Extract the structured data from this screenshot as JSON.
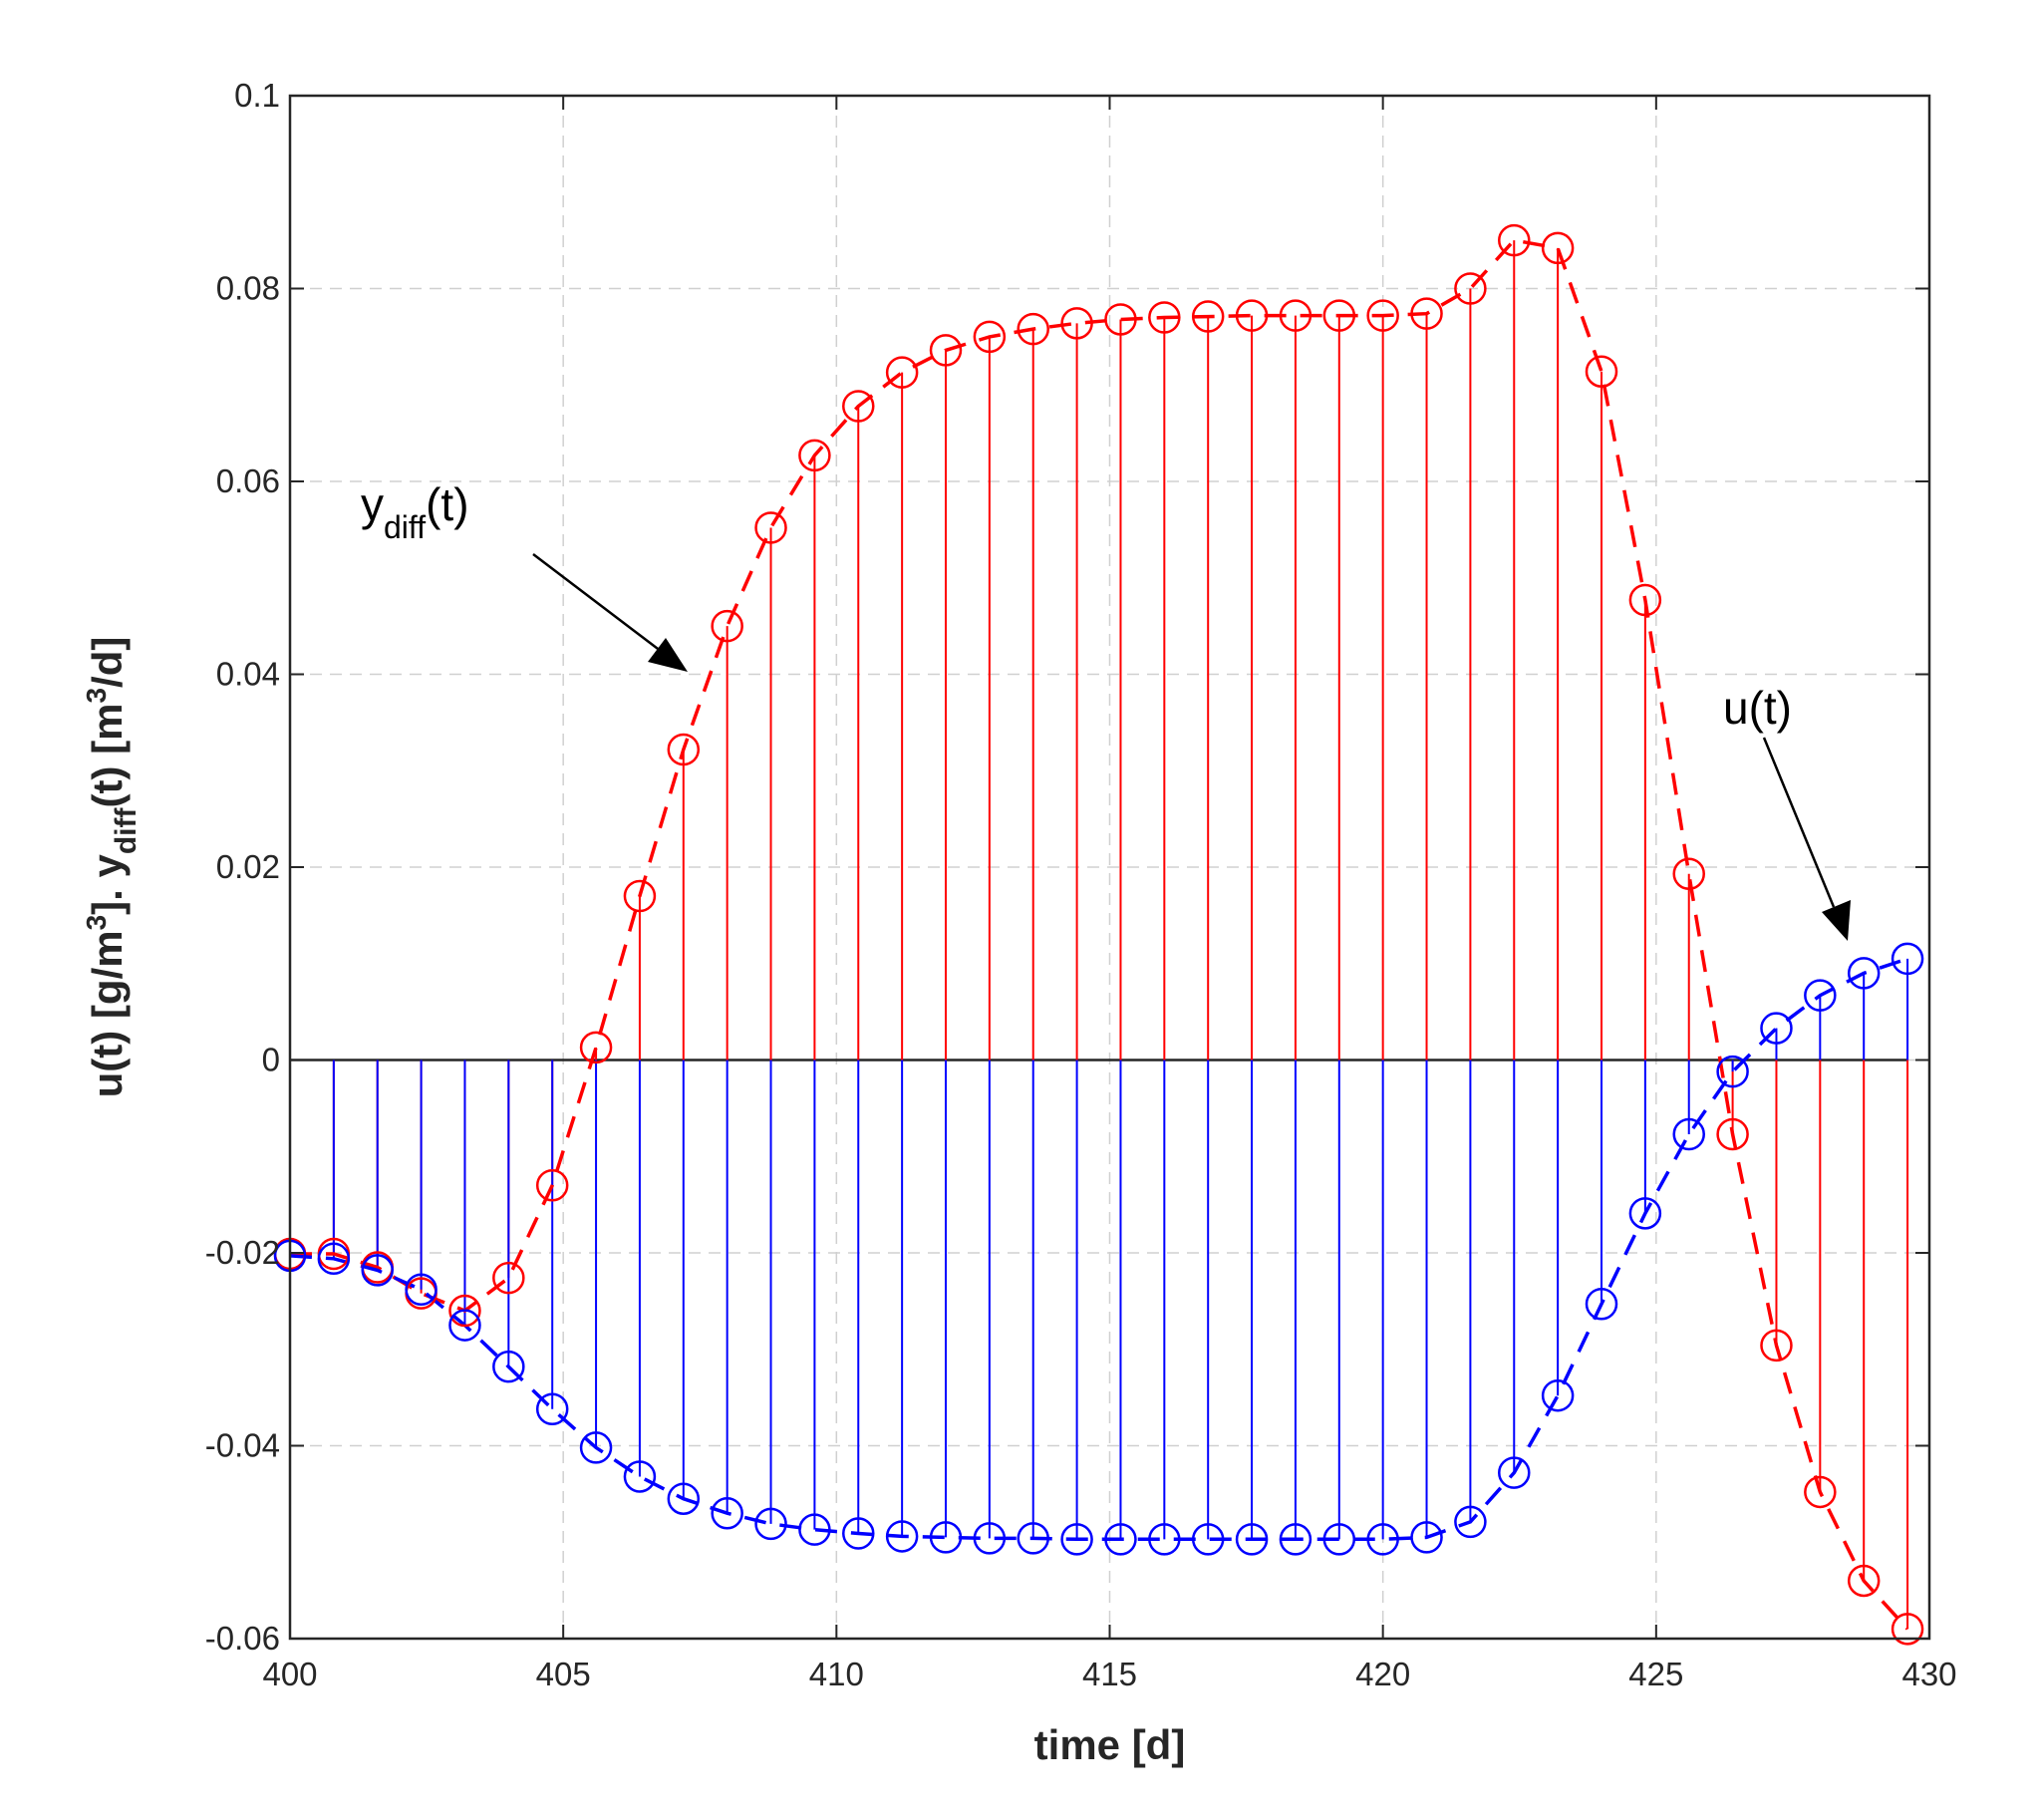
{
  "chart_data": {
    "type": "stem",
    "title": "",
    "xlabel": "time [d]",
    "ylabel": {
      "part1": "u(t)  [g/m",
      "sup1": "3",
      "part2": "]. y",
      "sub1": "diff",
      "part3": "(t)  [m",
      "sup2": "3",
      "part4": "/d]"
    },
    "xlim": [
      400,
      430
    ],
    "ylim": [
      -0.06,
      0.1
    ],
    "grid": true,
    "x_ticks": [
      400,
      405,
      410,
      415,
      420,
      425,
      430
    ],
    "x_tick_labels": [
      "400",
      "405",
      "410",
      "415",
      "420",
      "425",
      "430"
    ],
    "y_ticks": [
      -0.06,
      -0.04,
      -0.02,
      0,
      0.02,
      0.04,
      0.06,
      0.08,
      0.1
    ],
    "y_tick_labels": [
      "-0.06",
      "-0.04",
      "-0.02",
      "0",
      "0.02",
      "0.04",
      "0.06",
      "0.08",
      "0.1"
    ],
    "x": [
      400.0,
      400.8,
      401.6,
      402.4,
      403.2,
      404.0,
      404.8,
      405.6,
      406.4,
      407.2,
      408.0,
      408.8,
      409.6,
      410.4,
      411.2,
      412.0,
      412.8,
      413.6,
      414.4,
      415.2,
      416.0,
      416.8,
      417.6,
      418.4,
      419.2,
      420.0,
      420.8,
      421.6,
      422.4,
      423.2,
      424.0,
      424.8,
      425.6,
      426.4,
      427.2,
      428.0,
      428.8,
      429.6
    ],
    "series": [
      {
        "name": "y_diff(t)",
        "color": "#ff0000",
        "style": "dashed",
        "values": [
          -0.0201,
          -0.0201,
          -0.0215,
          -0.0242,
          -0.026,
          -0.0226,
          -0.013,
          0.0013,
          0.017,
          0.0322,
          0.045,
          0.0552,
          0.0627,
          0.0678,
          0.0713,
          0.0736,
          0.075,
          0.0758,
          0.0764,
          0.0768,
          0.077,
          0.0771,
          0.0772,
          0.0772,
          0.0772,
          0.0772,
          0.0774,
          0.08,
          0.085,
          0.0842,
          0.0714,
          0.0477,
          0.0193,
          -0.0077,
          -0.0296,
          -0.0448,
          -0.054,
          -0.059
        ]
      },
      {
        "name": "u(t)",
        "color": "#0000ff",
        "style": "dashed",
        "values": [
          -0.0203,
          -0.0206,
          -0.0218,
          -0.0238,
          -0.0275,
          -0.0318,
          -0.0362,
          -0.0402,
          -0.0432,
          -0.0455,
          -0.047,
          -0.0481,
          -0.0487,
          -0.0491,
          -0.0494,
          -0.0495,
          -0.0496,
          -0.0496,
          -0.0497,
          -0.0497,
          -0.0497,
          -0.0497,
          -0.0497,
          -0.0497,
          -0.0497,
          -0.0497,
          -0.0495,
          -0.0479,
          -0.0428,
          -0.0348,
          -0.0253,
          -0.0159,
          -0.0077,
          -0.0012,
          0.0033,
          0.0067,
          0.009,
          0.0105
        ]
      }
    ],
    "annotations": [
      {
        "name": "y_diff annotation",
        "text_main": "y",
        "text_sub": "diff",
        "text_tail": "(t)",
        "arrow_target": [
          407.3,
          0.039
        ]
      },
      {
        "name": "u annotation",
        "text_main": "u(t)",
        "arrow_target": [
          428.7,
          0.0095
        ]
      }
    ]
  },
  "colors": {
    "y_diff": "#ff0000",
    "u": "#0000ff",
    "grid": "#d0d0d0",
    "axes": "#262626"
  }
}
